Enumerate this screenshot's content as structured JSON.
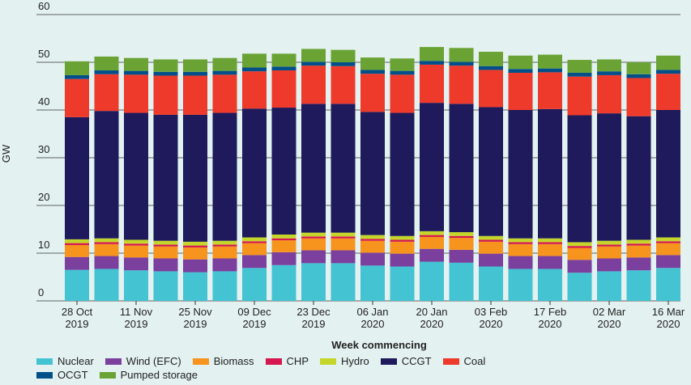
{
  "chart_data": {
    "type": "stacked-bar",
    "x_label": "Week commencing",
    "y_label": "GW",
    "categories": [
      "28 Oct\n2019",
      null,
      "11 Nov\n2019",
      null,
      "25 Nov\n2019",
      null,
      "09 Dec\n2019",
      null,
      "23 Dec\n2019",
      null,
      "06 Jan\n2020",
      null,
      "20 Jan\n2020",
      null,
      "03 Feb\n2020",
      null,
      "17 Feb\n2020",
      null,
      "02 Mar\n2020",
      null,
      "16 Mar\n2020"
    ],
    "ylim": [
      0,
      60
    ],
    "yticks": [
      0,
      10,
      20,
      30,
      40,
      50,
      60
    ],
    "grid": true,
    "series": [
      {
        "name": "Nuclear",
        "color": "#44c3d3",
        "values": [
          6.5,
          6.7,
          6.4,
          6.2,
          6.0,
          6.2,
          6.9,
          7.5,
          7.9,
          7.9,
          7.4,
          7.2,
          8.2,
          8.0,
          7.2,
          6.7,
          6.7,
          5.9,
          6.2,
          6.4,
          6.9
        ]
      },
      {
        "name": "Wind (EFC)",
        "color": "#7b3f9e",
        "values": [
          2.7,
          2.7,
          2.7,
          2.7,
          2.7,
          2.7,
          2.7,
          2.7,
          2.7,
          2.7,
          2.7,
          2.7,
          2.7,
          2.7,
          2.7,
          2.7,
          2.7,
          2.7,
          2.7,
          2.7,
          2.7
        ]
      },
      {
        "name": "Biomass",
        "color": "#f7941d",
        "values": [
          2.5,
          2.5,
          2.5,
          2.5,
          2.5,
          2.5,
          2.5,
          2.5,
          2.5,
          2.5,
          2.5,
          2.5,
          2.5,
          2.5,
          2.5,
          2.5,
          2.5,
          2.5,
          2.5,
          2.5,
          2.5
        ]
      },
      {
        "name": "CHP",
        "color": "#d6174f",
        "values": [
          0.4,
          0.4,
          0.4,
          0.4,
          0.4,
          0.4,
          0.4,
          0.4,
          0.4,
          0.4,
          0.4,
          0.4,
          0.4,
          0.4,
          0.4,
          0.4,
          0.4,
          0.4,
          0.4,
          0.4,
          0.4
        ]
      },
      {
        "name": "Hydro",
        "color": "#c5d62b",
        "values": [
          0.8,
          0.8,
          0.8,
          0.8,
          0.8,
          0.8,
          0.8,
          0.8,
          0.8,
          0.8,
          0.8,
          0.8,
          0.8,
          0.8,
          0.8,
          0.8,
          0.8,
          0.8,
          0.8,
          0.8,
          0.8
        ]
      },
      {
        "name": "CCGT",
        "color": "#1e1a5c",
        "values": [
          25.6,
          26.7,
          26.6,
          26.4,
          26.6,
          26.8,
          27.0,
          26.6,
          27.0,
          27.0,
          25.8,
          25.8,
          26.9,
          26.9,
          27.0,
          26.9,
          27.1,
          26.6,
          26.7,
          25.9,
          26.7
        ]
      },
      {
        "name": "Coal",
        "color": "#ee3a2b",
        "values": [
          8.0,
          7.7,
          8.0,
          8.2,
          8.2,
          8.0,
          7.8,
          7.8,
          8.0,
          7.9,
          8.0,
          8.0,
          8.0,
          8.0,
          7.8,
          7.8,
          7.7,
          8.1,
          8.0,
          8.0,
          7.6
        ]
      },
      {
        "name": "OCGT",
        "color": "#034f8a",
        "values": [
          0.8,
          0.8,
          0.8,
          0.8,
          0.8,
          0.8,
          0.8,
          0.8,
          0.8,
          0.8,
          0.8,
          0.8,
          0.8,
          0.8,
          0.8,
          0.8,
          0.8,
          0.8,
          0.8,
          0.8,
          0.8
        ]
      },
      {
        "name": "Pumped storage",
        "color": "#6aa334",
        "values": [
          2.9,
          2.9,
          2.7,
          2.6,
          2.6,
          2.7,
          2.9,
          2.7,
          2.7,
          2.6,
          2.6,
          2.6,
          2.9,
          2.9,
          3.0,
          2.8,
          2.9,
          2.7,
          2.5,
          2.5,
          3.0
        ]
      }
    ]
  }
}
